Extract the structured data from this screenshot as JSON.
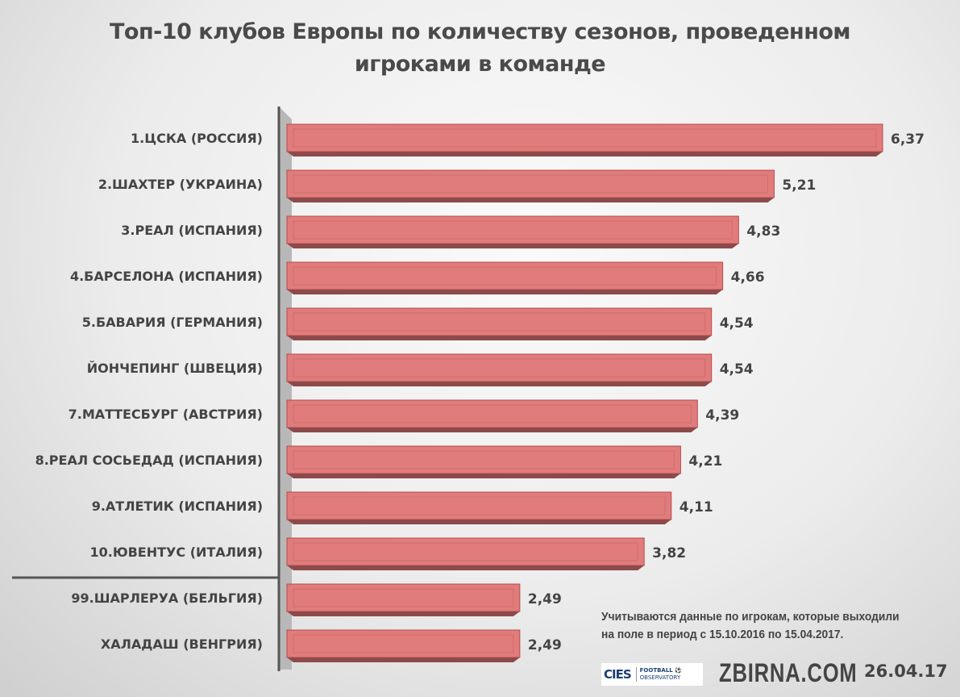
{
  "chart_data": {
    "type": "bar",
    "orientation": "horizontal",
    "title_lines": [
      "Топ-10 клубов Европы по количеству сезонов, проведенном",
      "игроками в команде"
    ],
    "categories": [
      "1.ЦСКА (РОССИЯ)",
      "2.ШАХТЕР (УКРАИНА)",
      "3.РЕАЛ (ИСПАНИЯ)",
      "4.БАРСЕЛОНА (ИСПАНИЯ)",
      "5.БАВАРИЯ (ГЕРМАНИЯ)",
      "ЙОНЧЕПИНГ (ШВЕЦИЯ)",
      "7.МАТТЕСБУРГ (АВСТРИЯ)",
      "8.РЕАЛ СОСЬЕДАД (ИСПАНИЯ)",
      "9.АТЛЕТИК (ИСПАНИЯ)",
      "10.ЮВЕНТУС (ИТАЛИЯ)",
      "99.ШАРЛЕРУА (БЕЛЬГИЯ)",
      "ХАЛАДАШ (ВЕНГРИЯ)"
    ],
    "values": [
      6.37,
      5.21,
      4.83,
      4.66,
      4.54,
      4.54,
      4.39,
      4.21,
      4.11,
      3.82,
      2.49,
      2.49
    ],
    "data_labels": [
      "6,37",
      "5,21",
      "4,83",
      "4,66",
      "4,54",
      "4,54",
      "4,39",
      "4,21",
      "4,11",
      "3,82",
      "2,49",
      "2,49"
    ],
    "xlim": [
      0,
      6.37
    ],
    "grid": false,
    "bar_color": "#e07c7c",
    "separator_after_index": 9
  },
  "footer": {
    "note_lines": [
      "Учитываются данные по игрокам, которые выходили",
      "на поле в период с 15.10.2016 по 15.04.2017."
    ],
    "logo_cies": "CIES",
    "logo_football": "FOOTBALL",
    "logo_observatory": "OBSERVATORY",
    "site": "ZBIRNA.COM",
    "date": "26.04.17"
  }
}
